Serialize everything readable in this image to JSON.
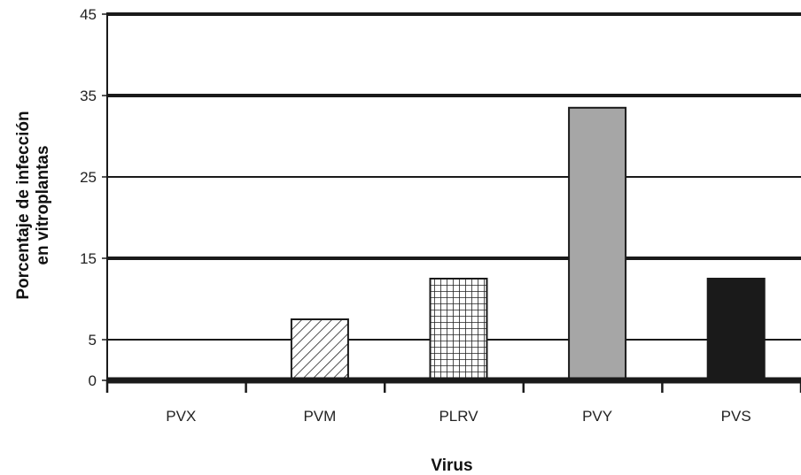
{
  "chart_data": {
    "type": "bar",
    "title": "",
    "xlabel": "Virus",
    "ylabel_lines": [
      "Porcentaje de infección",
      "en vitroplantas"
    ],
    "ylim": [
      0,
      45
    ],
    "yticks": [
      0,
      5,
      15,
      25,
      35,
      45
    ],
    "grid": true,
    "legend": "none",
    "categories": [
      "PVX",
      "PVM",
      "PLRV",
      "PVY",
      "PVS"
    ],
    "values": [
      0,
      7.5,
      12.5,
      33.5,
      12.5
    ],
    "bar_fills": [
      "none",
      "diagonal-hatch",
      "grid-hatch",
      "#a6a6a6",
      "#1a1a1a"
    ]
  }
}
